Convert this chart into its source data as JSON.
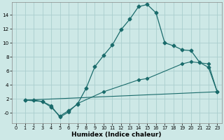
{
  "xlabel": "Humidex (Indice chaleur)",
  "bg_color": "#cde8e6",
  "grid_color": "#aacece",
  "line_color": "#1a6b6b",
  "xlim": [
    -0.5,
    23.5
  ],
  "ylim": [
    -1.5,
    15.8
  ],
  "xticks": [
    0,
    1,
    2,
    3,
    4,
    5,
    6,
    7,
    8,
    9,
    10,
    11,
    12,
    13,
    14,
    15,
    16,
    17,
    18,
    19,
    20,
    21,
    22,
    23
  ],
  "yticks": [
    0,
    2,
    4,
    6,
    8,
    10,
    12,
    14
  ],
  "curve_x": [
    1,
    2,
    3,
    4,
    5,
    6,
    7,
    8,
    9,
    10,
    11,
    12,
    13,
    14,
    15,
    16,
    17,
    18,
    19,
    20,
    21,
    22,
    23
  ],
  "curve_y": [
    1.8,
    1.8,
    1.6,
    0.8,
    -0.5,
    0.3,
    1.2,
    3.5,
    6.6,
    8.2,
    9.7,
    11.9,
    13.4,
    15.2,
    15.5,
    14.3,
    10.0,
    9.6,
    9.0,
    8.9,
    7.2,
    6.5,
    3.0
  ],
  "line2_x": [
    1,
    3,
    4,
    5,
    6,
    7,
    10,
    14,
    15,
    19,
    20,
    22,
    23
  ],
  "line2_y": [
    1.8,
    1.6,
    1.0,
    -0.65,
    0.1,
    1.3,
    3.0,
    4.7,
    4.9,
    7.0,
    7.3,
    7.0,
    3.0
  ],
  "line3_x": [
    1,
    23
  ],
  "line3_y": [
    1.8,
    3.0
  ]
}
